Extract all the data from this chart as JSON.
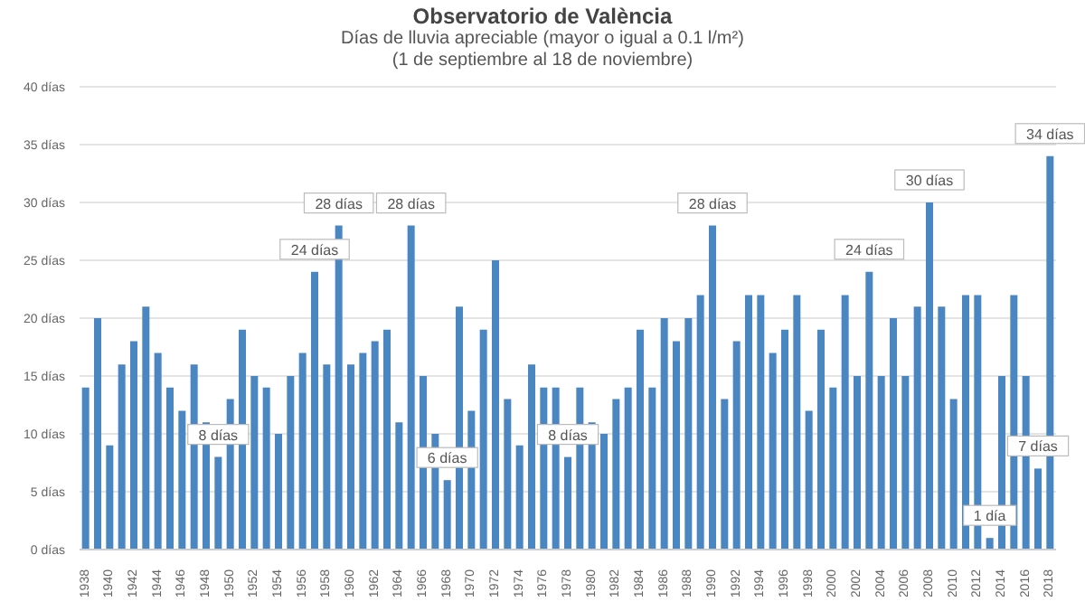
{
  "chart_data": {
    "type": "bar",
    "title": "Observatorio de València",
    "subtitle": "Días de lluvia apreciable (mayor o igual a 0.1 l/m²)\n(1 de septiembre  al 18 de noviembre)",
    "categories": [
      "1938",
      null,
      "1940",
      null,
      "1942",
      null,
      "1944",
      null,
      "1946",
      null,
      "1948",
      null,
      "1950",
      null,
      "1952",
      null,
      "1954",
      null,
      "1956",
      null,
      "1958",
      null,
      "1960",
      null,
      "1962",
      null,
      "1964",
      null,
      "1966",
      null,
      "1968",
      null,
      "1970",
      null,
      "1972",
      null,
      "1974",
      null,
      "1976",
      null,
      "1978",
      null,
      "1980",
      null,
      "1982",
      null,
      "1984",
      null,
      "1986",
      null,
      "1988",
      null,
      "1990",
      null,
      "1992",
      null,
      "1994",
      null,
      "1996",
      null,
      "1998",
      null,
      "2000",
      null,
      "2002",
      null,
      "2004",
      null,
      "2006",
      null,
      "2008",
      null,
      "2010",
      null,
      "2012",
      null,
      "2014",
      null,
      "2016",
      null,
      "2018"
    ],
    "values": [
      14,
      20,
      9,
      16,
      18,
      21,
      17,
      14,
      12,
      16,
      11,
      8,
      13,
      19,
      15,
      14,
      10,
      15,
      17,
      24,
      16,
      28,
      16,
      17,
      18,
      19,
      11,
      28,
      15,
      10,
      6,
      21,
      12,
      19,
      25,
      13,
      9,
      16,
      14,
      14,
      8,
      14,
      11,
      10,
      13,
      14,
      19,
      14,
      20,
      18,
      20,
      22,
      28,
      13,
      18,
      22,
      22,
      17,
      19,
      22,
      12,
      19,
      14,
      22,
      15,
      24,
      15,
      20,
      15,
      21,
      30,
      21,
      13,
      22,
      22,
      1,
      15,
      22,
      15,
      7,
      34
    ],
    "value_labels": [
      null,
      null,
      null,
      null,
      null,
      null,
      null,
      null,
      null,
      null,
      null,
      "8 días",
      null,
      null,
      null,
      null,
      null,
      null,
      null,
      "24 días",
      null,
      "28 días",
      null,
      null,
      null,
      null,
      null,
      "28 días",
      null,
      null,
      "6 días",
      null,
      null,
      null,
      null,
      null,
      null,
      null,
      null,
      null,
      "8 días",
      null,
      null,
      null,
      null,
      null,
      null,
      null,
      null,
      null,
      null,
      null,
      "28 días",
      null,
      null,
      null,
      null,
      null,
      null,
      null,
      null,
      null,
      null,
      null,
      null,
      "24 días",
      null,
      null,
      null,
      null,
      "30 días",
      null,
      null,
      null,
      null,
      "1 día",
      null,
      null,
      null,
      "7 días",
      "34 días"
    ],
    "color": "#4a86c2",
    "ylim": [
      0,
      40
    ],
    "yticks": [
      {
        "value": 0,
        "label": "0 días"
      },
      {
        "value": 5,
        "label": "5 días"
      },
      {
        "value": 10,
        "label": "10 días"
      },
      {
        "value": 15,
        "label": "15 días"
      },
      {
        "value": 20,
        "label": "20 días"
      },
      {
        "value": 25,
        "label": "25 días"
      },
      {
        "value": 30,
        "label": "30 días"
      },
      {
        "value": 35,
        "label": "35 días"
      },
      {
        "value": 40,
        "label": "40 días"
      }
    ],
    "grid": "y"
  }
}
